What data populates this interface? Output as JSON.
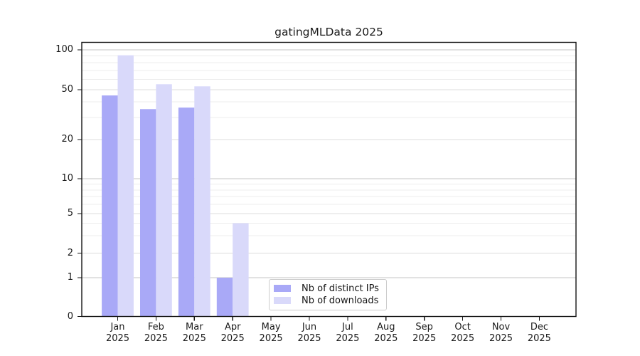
{
  "title": "gatingMLData 2025",
  "colors": {
    "distinct_ips": "#a9a9f7",
    "downloads": "#d9d9fa",
    "grid_power10": "#c6c6c6",
    "grid_major": "#dcdcdc",
    "grid_minor": "#ececec",
    "spine": "#151515",
    "text": "#1a1a1a",
    "legend_border": "#cccccc",
    "background": "#ffffff"
  },
  "x_axis": {
    "months": [
      "Jan",
      "Feb",
      "Mar",
      "Apr",
      "May",
      "Jun",
      "Jul",
      "Aug",
      "Sep",
      "Oct",
      "Nov",
      "Dec"
    ],
    "year": "2025"
  },
  "y_axis": {
    "tick_labels": [
      0,
      1,
      2,
      5,
      10,
      20,
      50,
      100
    ],
    "minor_ticks": [
      3,
      4,
      6,
      7,
      8,
      9,
      30,
      40,
      60,
      70,
      80,
      90
    ]
  },
  "legend": {
    "items": [
      {
        "label": "Nb of distinct IPs",
        "color_key": "distinct_ips"
      },
      {
        "label": "Nb of downloads",
        "color_key": "downloads"
      }
    ]
  },
  "chart_data": {
    "type": "bar",
    "title": "gatingMLData 2025",
    "categories": [
      "Jan 2025",
      "Feb 2025",
      "Mar 2025",
      "Apr 2025",
      "May 2025",
      "Jun 2025",
      "Jul 2025",
      "Aug 2025",
      "Sep 2025",
      "Oct 2025",
      "Nov 2025",
      "Dec 2025"
    ],
    "series": [
      {
        "name": "Nb of distinct IPs",
        "color_key": "distinct_ips",
        "values": [
          45,
          35,
          36,
          1,
          0,
          0,
          0,
          0,
          0,
          0,
          0,
          0
        ]
      },
      {
        "name": "Nb of downloads",
        "color_key": "downloads",
        "values": [
          91,
          55,
          53,
          4,
          0,
          0,
          0,
          0,
          0,
          0,
          0,
          0
        ]
      }
    ],
    "xlabel": "",
    "ylabel": "",
    "yticks": [
      0,
      1,
      2,
      5,
      10,
      20,
      50,
      100
    ],
    "yscale": "log-like with linear 0-1 segment",
    "ylim": [
      0,
      110
    ],
    "grid": "horizontal major + minor",
    "legend_position": "lower center"
  }
}
